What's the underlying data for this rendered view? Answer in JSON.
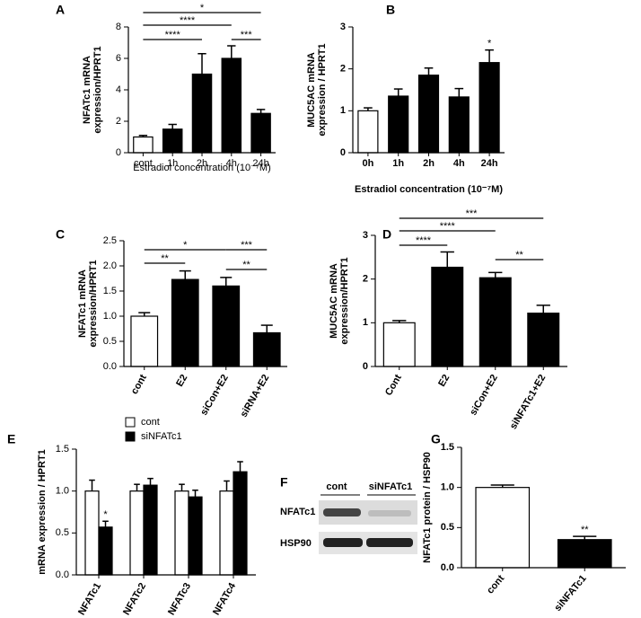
{
  "chart_data": [
    {
      "type": "bar",
      "panel": "A",
      "ylabel": [
        "NFATc1 mRNA",
        "expression/HPRT1"
      ],
      "xlabel": "Estradiol concentration (10⁻⁷M)",
      "categories": [
        "cont",
        "1h",
        "2h",
        "4h",
        "24h"
      ],
      "values": [
        1.0,
        1.5,
        5.0,
        6.0,
        2.5
      ],
      "errors": [
        0.1,
        0.3,
        1.3,
        0.8,
        0.25
      ],
      "colors": [
        "#ffffff",
        "#000000",
        "#000000",
        "#000000",
        "#000000"
      ],
      "ylim": [
        0,
        8
      ],
      "yticks": [
        0,
        2,
        4,
        6,
        8
      ],
      "annotations": [
        {
          "text": "*",
          "from": 0,
          "to": 4
        },
        {
          "text": "****",
          "from": 0,
          "to": 3
        },
        {
          "text": "****",
          "from": 0,
          "to": 2
        },
        {
          "text": "***",
          "from": 3,
          "to": 4
        }
      ]
    },
    {
      "type": "bar",
      "panel": "B",
      "ylabel": [
        "MUC5AC mRNA",
        "expression / HPRT1"
      ],
      "xlabel": "Estradiol concentration (10⁻⁷M)",
      "categories": [
        "0h",
        "1h",
        "2h",
        "4h",
        "24h"
      ],
      "values": [
        1.0,
        1.35,
        1.85,
        1.33,
        2.15
      ],
      "errors": [
        0.07,
        0.17,
        0.17,
        0.2,
        0.3
      ],
      "colors": [
        "#ffffff",
        "#000000",
        "#000000",
        "#000000",
        "#000000"
      ],
      "ylim": [
        0,
        3
      ],
      "yticks": [
        0,
        1,
        2,
        3
      ],
      "annotations": [
        {
          "text": "*",
          "category": 4
        }
      ]
    },
    {
      "type": "bar",
      "panel": "C",
      "ylabel": [
        "NFATc1 mRNA",
        "expression/HPRT1"
      ],
      "rotate_labels": true,
      "categories": [
        "cont",
        "E2",
        "siCon+E2",
        "siRNA+E2"
      ],
      "values": [
        1.0,
        1.73,
        1.6,
        0.67
      ],
      "errors": [
        0.07,
        0.17,
        0.17,
        0.15
      ],
      "colors": [
        "#ffffff",
        "#000000",
        "#000000",
        "#000000"
      ],
      "ylim": [
        0,
        2.5
      ],
      "yticks": [
        {
          "value": 0,
          "label": "0.0"
        },
        0.5,
        {
          "value": 1,
          "label": "1.0"
        },
        1.5,
        {
          "value": 2,
          "label": "2.0"
        },
        2.5
      ],
      "annotations": [
        {
          "text": "*",
          "from": 0,
          "to": 2
        },
        {
          "text": "***",
          "from": 2,
          "to": 3
        },
        {
          "text": "**",
          "from": 0,
          "to": 1
        },
        {
          "text": "**",
          "from": 2,
          "to": 3
        }
      ]
    },
    {
      "type": "bar",
      "panel": "D",
      "ylabel": [
        "MUC5AC mRNA",
        "expression/HPRT1"
      ],
      "rotate_labels": true,
      "categories": [
        "Cont",
        "E2",
        "siCon+E2",
        "siNFATc1+E2"
      ],
      "values": [
        1.0,
        2.27,
        2.03,
        1.22
      ],
      "errors": [
        0.05,
        0.35,
        0.12,
        0.18
      ],
      "colors": [
        "#ffffff",
        "#000000",
        "#000000",
        "#000000"
      ],
      "ylim": [
        0,
        3
      ],
      "yticks": [
        0,
        1,
        2,
        3
      ],
      "annotations": [
        {
          "text": "***",
          "from": 0,
          "to": 3
        },
        {
          "text": "****",
          "from": 0,
          "to": 2
        },
        {
          "text": "****",
          "from": 0,
          "to": 1
        },
        {
          "text": "**",
          "from": 2,
          "to": 3
        }
      ]
    },
    {
      "type": "bar",
      "panel": "E",
      "ylabel": [
        "mRNA expression / HPRT1"
      ],
      "rotate_labels": true,
      "categories": [
        "NFATc1",
        "NFATc2",
        "NFATc3",
        "NFATc4"
      ],
      "series": [
        {
          "name": "cont",
          "color": "#ffffff",
          "values": [
            1.0,
            1.0,
            1.0,
            1.0
          ],
          "errors": [
            0.13,
            0.08,
            0.08,
            0.12
          ]
        },
        {
          "name": "siNFATc1",
          "color": "#000000",
          "values": [
            0.57,
            1.07,
            0.93,
            1.23
          ],
          "errors": [
            0.07,
            0.08,
            0.08,
            0.12
          ]
        }
      ],
      "ylim": [
        0,
        1.5
      ],
      "yticks": [
        {
          "value": 0,
          "label": "0.0"
        },
        0.5,
        {
          "value": 1,
          "label": "1.0"
        },
        1.5
      ],
      "legend": "top",
      "annotations": [
        {
          "text": "*",
          "category": 0,
          "series": 1
        }
      ]
    },
    {
      "type": "bar",
      "panel": "G",
      "ylabel": [
        "NFATc1 protein / HSP90"
      ],
      "rotate_labels": true,
      "categories": [
        "cont",
        "siNFATc1"
      ],
      "values": [
        1.0,
        0.35
      ],
      "errors": [
        0.03,
        0.04
      ],
      "colors": [
        "#ffffff",
        "#000000"
      ],
      "ylim": [
        0,
        1.5
      ],
      "yticks": [
        {
          "value": 0,
          "label": "0.0"
        },
        0.5,
        {
          "value": 1,
          "label": "1.0"
        },
        1.5
      ],
      "annotations": [
        {
          "text": "**",
          "category": 1
        }
      ]
    }
  ],
  "blot": {
    "panel": "F",
    "lanes": [
      "cont",
      "siNFATc1"
    ],
    "rows": [
      "NFATc1",
      "HSP90"
    ]
  }
}
